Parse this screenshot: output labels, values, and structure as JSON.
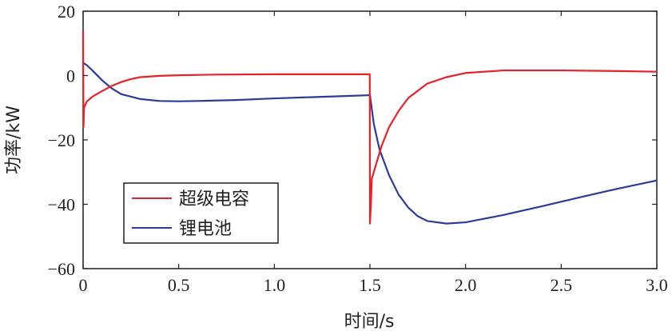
{
  "chart_data": {
    "type": "line",
    "xlabel": "时间/s",
    "ylabel": "功率/kW",
    "xlim": [
      0,
      3.0
    ],
    "ylim": [
      -60,
      20
    ],
    "x_ticks": [
      "0",
      "0.5",
      "1.0",
      "1.5",
      "2.0",
      "2.5",
      "3.0"
    ],
    "x_tick_values": [
      0,
      0.5,
      1.0,
      1.5,
      2.0,
      2.5,
      3.0
    ],
    "y_ticks": [
      "20",
      "0",
      "−20",
      "−40",
      "−60"
    ],
    "y_tick_values": [
      20,
      0,
      -20,
      -40,
      -60
    ],
    "grid": false,
    "legend_placement": "lower-left",
    "series": [
      {
        "name": "超级电容",
        "color": "#e8202a",
        "points": [
          [
            0,
            14
          ],
          [
            0.002,
            -16
          ],
          [
            0.005,
            -10
          ],
          [
            0.02,
            -8
          ],
          [
            0.05,
            -6.5
          ],
          [
            0.1,
            -4.8
          ],
          [
            0.15,
            -3.2
          ],
          [
            0.2,
            -2
          ],
          [
            0.25,
            -1.1
          ],
          [
            0.3,
            -0.5
          ],
          [
            0.4,
            -0.1
          ],
          [
            0.5,
            0.1
          ],
          [
            0.7,
            0.3
          ],
          [
            1.0,
            0.4
          ],
          [
            1.3,
            0.4
          ],
          [
            1.499,
            0.4
          ],
          [
            1.5,
            -46
          ],
          [
            1.505,
            -40
          ],
          [
            1.51,
            -32
          ],
          [
            1.53,
            -28
          ],
          [
            1.56,
            -22
          ],
          [
            1.6,
            -16
          ],
          [
            1.65,
            -11
          ],
          [
            1.7,
            -7
          ],
          [
            1.8,
            -2.5
          ],
          [
            1.9,
            -0.5
          ],
          [
            2.0,
            0.8
          ],
          [
            2.2,
            1.6
          ],
          [
            2.5,
            1.6
          ],
          [
            2.8,
            1.4
          ],
          [
            3.0,
            1.2
          ]
        ]
      },
      {
        "name": "锂电池",
        "color": "#2e3a97",
        "points": [
          [
            0,
            4
          ],
          [
            0.02,
            3.2
          ],
          [
            0.05,
            1.5
          ],
          [
            0.1,
            -1.5
          ],
          [
            0.15,
            -4
          ],
          [
            0.2,
            -5.8
          ],
          [
            0.3,
            -7.3
          ],
          [
            0.4,
            -7.9
          ],
          [
            0.5,
            -8
          ],
          [
            0.6,
            -7.9
          ],
          [
            0.8,
            -7.6
          ],
          [
            1.0,
            -7.1
          ],
          [
            1.2,
            -6.7
          ],
          [
            1.4,
            -6.3
          ],
          [
            1.5,
            -6.1
          ],
          [
            1.52,
            -15
          ],
          [
            1.55,
            -23
          ],
          [
            1.6,
            -31
          ],
          [
            1.65,
            -37
          ],
          [
            1.7,
            -41
          ],
          [
            1.75,
            -43.7
          ],
          [
            1.8,
            -45.2
          ],
          [
            1.9,
            -46
          ],
          [
            2.0,
            -45.6
          ],
          [
            2.2,
            -43.3
          ],
          [
            2.4,
            -40.6
          ],
          [
            2.6,
            -37.8
          ],
          [
            2.8,
            -35.1
          ],
          [
            3.0,
            -32.6
          ]
        ]
      }
    ]
  }
}
